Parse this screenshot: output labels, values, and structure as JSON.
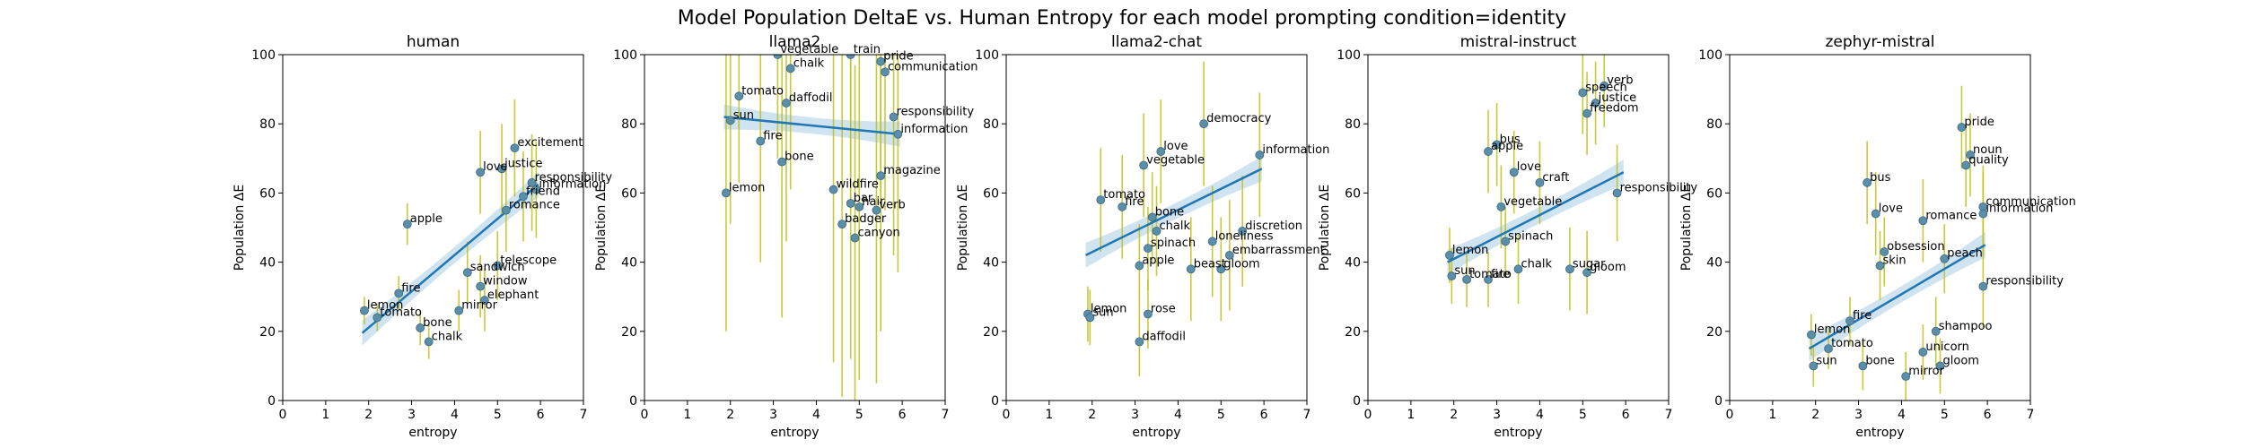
{
  "figure": {
    "title": "Model Population DeltaE vs. Human Entropy for each model prompting condition=identity"
  },
  "colors": {
    "point": "#5b8ea8",
    "point_edge": "#3a6a82",
    "regression": "#1f77b4",
    "ci_band": "#bcd7ea",
    "error_bar": "#bfbf1a"
  },
  "chart_data": [
    {
      "type": "scatter",
      "title": "human",
      "xlabel": "entropy",
      "ylabel": "Population ΔE",
      "xlim": [
        0,
        7
      ],
      "ylim": [
        0,
        100
      ],
      "xticks": [
        "0",
        "1",
        "2",
        "3",
        "4",
        "5",
        "6",
        "7"
      ],
      "yticks": [
        "0",
        "20",
        "40",
        "60",
        "80",
        "100"
      ],
      "regression": {
        "x": [
          1.85,
          5.95
        ],
        "y": [
          19.5,
          62.5
        ]
      },
      "points": [
        {
          "label": "lemon",
          "x": 1.9,
          "y": 26,
          "err": 4
        },
        {
          "label": "tomato",
          "x": 2.2,
          "y": 24,
          "err": 4
        },
        {
          "label": "apple",
          "x": 2.9,
          "y": 51,
          "err": 6
        },
        {
          "label": "fire",
          "x": 2.7,
          "y": 31,
          "err": 5
        },
        {
          "label": "bone",
          "x": 3.2,
          "y": 21,
          "err": 5
        },
        {
          "label": "chalk",
          "x": 3.4,
          "y": 17,
          "err": 5
        },
        {
          "label": "mirror",
          "x": 4.1,
          "y": 26,
          "err": 6
        },
        {
          "label": "window",
          "x": 4.6,
          "y": 33,
          "err": 9
        },
        {
          "label": "elephant",
          "x": 4.7,
          "y": 29,
          "err": 9
        },
        {
          "label": "telescope",
          "x": 5.0,
          "y": 39,
          "err": 10
        },
        {
          "label": "sandwich",
          "x": 4.3,
          "y": 37,
          "err": 9
        },
        {
          "label": "romance",
          "x": 5.2,
          "y": 55,
          "err": 12
        },
        {
          "label": "excitement",
          "x": 5.4,
          "y": 73,
          "err": 14
        },
        {
          "label": "responsibility",
          "x": 5.8,
          "y": 63,
          "err": 14
        },
        {
          "label": "information",
          "x": 5.9,
          "y": 61,
          "err": 14
        },
        {
          "label": "friend",
          "x": 5.6,
          "y": 59,
          "err": 13
        },
        {
          "label": "justice",
          "x": 5.1,
          "y": 67,
          "err": 13
        },
        {
          "label": "love",
          "x": 4.6,
          "y": 66,
          "err": 12
        }
      ]
    },
    {
      "type": "scatter",
      "title": "llama2",
      "xlabel": "entropy",
      "ylabel": "Population ΔE",
      "xlim": [
        0,
        7
      ],
      "ylim": [
        0,
        100
      ],
      "xticks": [
        "0",
        "1",
        "2",
        "3",
        "4",
        "5",
        "6",
        "7"
      ],
      "yticks": [
        "0",
        "20",
        "40",
        "60",
        "80",
        "100"
      ],
      "regression": {
        "x": [
          1.85,
          5.95
        ],
        "y": [
          82,
          77
        ]
      },
      "points": [
        {
          "label": "lemon",
          "x": 1.9,
          "y": 60,
          "err": 40
        },
        {
          "label": "sun",
          "x": 2.0,
          "y": 81,
          "err": 30
        },
        {
          "label": "tomato",
          "x": 2.2,
          "y": 88,
          "err": 25
        },
        {
          "label": "fire",
          "x": 2.7,
          "y": 75,
          "err": 35
        },
        {
          "label": "vegetable",
          "x": 3.1,
          "y": 100,
          "err": 30
        },
        {
          "label": "chalk",
          "x": 3.4,
          "y": 96,
          "err": 35
        },
        {
          "label": "bone",
          "x": 3.2,
          "y": 69,
          "err": 45
        },
        {
          "label": "daffodil",
          "x": 3.3,
          "y": 86,
          "err": 40
        },
        {
          "label": "train",
          "x": 4.8,
          "y": 100,
          "err": 45
        },
        {
          "label": "pride",
          "x": 5.5,
          "y": 98,
          "err": 40
        },
        {
          "label": "communication",
          "x": 5.6,
          "y": 95,
          "err": 40
        },
        {
          "label": "responsibility",
          "x": 5.8,
          "y": 82,
          "err": 40
        },
        {
          "label": "information",
          "x": 5.9,
          "y": 77,
          "err": 40
        },
        {
          "label": "magazine",
          "x": 5.5,
          "y": 65,
          "err": 45
        },
        {
          "label": "wildfire",
          "x": 4.4,
          "y": 61,
          "err": 50
        },
        {
          "label": "hair",
          "x": 5.0,
          "y": 56,
          "err": 50
        },
        {
          "label": "verb",
          "x": 5.4,
          "y": 55,
          "err": 50
        },
        {
          "label": "badger",
          "x": 4.6,
          "y": 51,
          "err": 50
        },
        {
          "label": "canyon",
          "x": 4.9,
          "y": 47,
          "err": 50
        },
        {
          "label": "bar",
          "x": 4.8,
          "y": 57,
          "err": 45
        }
      ]
    },
    {
      "type": "scatter",
      "title": "llama2-chat",
      "xlabel": "entropy",
      "ylabel": "Population ΔE",
      "xlim": [
        0,
        7
      ],
      "ylim": [
        0,
        100
      ],
      "xticks": [
        "0",
        "1",
        "2",
        "3",
        "4",
        "5",
        "6",
        "7"
      ],
      "yticks": [
        "0",
        "20",
        "40",
        "60",
        "80",
        "100"
      ],
      "regression": {
        "x": [
          1.85,
          5.95
        ],
        "y": [
          42,
          67
        ]
      },
      "points": [
        {
          "label": "lemon",
          "x": 1.9,
          "y": 25,
          "err": 8
        },
        {
          "label": "sun",
          "x": 1.95,
          "y": 24,
          "err": 8
        },
        {
          "label": "daffodil",
          "x": 3.1,
          "y": 17,
          "err": 10
        },
        {
          "label": "rose",
          "x": 3.3,
          "y": 25,
          "err": 10
        },
        {
          "label": "tomato",
          "x": 2.2,
          "y": 58,
          "err": 15
        },
        {
          "label": "fire",
          "x": 2.7,
          "y": 56,
          "err": 15
        },
        {
          "label": "apple",
          "x": 3.1,
          "y": 39,
          "err": 12
        },
        {
          "label": "spinach",
          "x": 3.3,
          "y": 44,
          "err": 12
        },
        {
          "label": "chalk",
          "x": 3.5,
          "y": 49,
          "err": 13
        },
        {
          "label": "bone",
          "x": 3.4,
          "y": 53,
          "err": 13
        },
        {
          "label": "love",
          "x": 3.6,
          "y": 72,
          "err": 15
        },
        {
          "label": "vegetable",
          "x": 3.2,
          "y": 68,
          "err": 15
        },
        {
          "label": "democracy",
          "x": 4.6,
          "y": 80,
          "err": 18
        },
        {
          "label": "information",
          "x": 5.9,
          "y": 71,
          "err": 18
        },
        {
          "label": "gloom",
          "x": 5.0,
          "y": 38,
          "err": 15
        },
        {
          "label": "beast",
          "x": 4.3,
          "y": 38,
          "err": 15
        },
        {
          "label": "embarrassment",
          "x": 5.2,
          "y": 42,
          "err": 16
        },
        {
          "label": "discretion",
          "x": 5.5,
          "y": 49,
          "err": 16
        },
        {
          "label": "loneliness",
          "x": 4.8,
          "y": 46,
          "err": 16
        }
      ]
    },
    {
      "type": "scatter",
      "title": "mistral-instruct",
      "xlabel": "entropy",
      "ylabel": "Population ΔE",
      "xlim": [
        0,
        7
      ],
      "ylim": [
        0,
        100
      ],
      "xticks": [
        "0",
        "1",
        "2",
        "3",
        "4",
        "5",
        "6",
        "7"
      ],
      "yticks": [
        "0",
        "20",
        "40",
        "60",
        "80",
        "100"
      ],
      "regression": {
        "x": [
          1.85,
          5.95
        ],
        "y": [
          40,
          66
        ]
      },
      "points": [
        {
          "label": "lemon",
          "x": 1.9,
          "y": 42,
          "err": 8
        },
        {
          "label": "sun",
          "x": 1.95,
          "y": 36,
          "err": 8
        },
        {
          "label": "tomato",
          "x": 2.3,
          "y": 35,
          "err": 8
        },
        {
          "label": "fire",
          "x": 2.8,
          "y": 35,
          "err": 8
        },
        {
          "label": "chalk",
          "x": 3.5,
          "y": 38,
          "err": 10
        },
        {
          "label": "spinach",
          "x": 3.2,
          "y": 46,
          "err": 10
        },
        {
          "label": "apple",
          "x": 2.8,
          "y": 72,
          "err": 12
        },
        {
          "label": "bus",
          "x": 3.0,
          "y": 74,
          "err": 12
        },
        {
          "label": "love",
          "x": 3.4,
          "y": 66,
          "err": 12
        },
        {
          "label": "vegetable",
          "x": 3.1,
          "y": 56,
          "err": 12
        },
        {
          "label": "verb",
          "x": 5.5,
          "y": 91,
          "err": 12
        },
        {
          "label": "speech",
          "x": 5.0,
          "y": 89,
          "err": 12
        },
        {
          "label": "justice",
          "x": 5.3,
          "y": 86,
          "err": 12
        },
        {
          "label": "freedom",
          "x": 5.1,
          "y": 83,
          "err": 12
        },
        {
          "label": "responsibility",
          "x": 5.8,
          "y": 60,
          "err": 14
        },
        {
          "label": "gloom",
          "x": 5.1,
          "y": 37,
          "err": 12
        },
        {
          "label": "sugar",
          "x": 4.7,
          "y": 38,
          "err": 12
        },
        {
          "label": "craft",
          "x": 4.0,
          "y": 63,
          "err": 12
        }
      ]
    },
    {
      "type": "scatter",
      "title": "zephyr-mistral",
      "xlabel": "entropy",
      "ylabel": "Population ΔE",
      "xlim": [
        0,
        7
      ],
      "ylim": [
        0,
        100
      ],
      "xticks": [
        "0",
        "1",
        "2",
        "3",
        "4",
        "5",
        "6",
        "7"
      ],
      "yticks": [
        "0",
        "20",
        "40",
        "60",
        "80",
        "100"
      ],
      "regression": {
        "x": [
          1.85,
          5.95
        ],
        "y": [
          15,
          45
        ]
      },
      "points": [
        {
          "label": "lemon",
          "x": 1.9,
          "y": 19,
          "err": 6
        },
        {
          "label": "sun",
          "x": 1.95,
          "y": 10,
          "err": 6
        },
        {
          "label": "tomato",
          "x": 2.3,
          "y": 15,
          "err": 6
        },
        {
          "label": "bone",
          "x": 3.1,
          "y": 10,
          "err": 7
        },
        {
          "label": "fire",
          "x": 2.8,
          "y": 23,
          "err": 7
        },
        {
          "label": "mirror",
          "x": 4.1,
          "y": 7,
          "err": 7
        },
        {
          "label": "unicorn",
          "x": 4.5,
          "y": 14,
          "err": 8
        },
        {
          "label": "gloom",
          "x": 4.9,
          "y": 10,
          "err": 8
        },
        {
          "label": "bus",
          "x": 3.2,
          "y": 63,
          "err": 12
        },
        {
          "label": "love",
          "x": 3.4,
          "y": 54,
          "err": 12
        },
        {
          "label": "pride",
          "x": 5.4,
          "y": 79,
          "err": 12
        },
        {
          "label": "noun",
          "x": 5.6,
          "y": 71,
          "err": 12
        },
        {
          "label": "quality",
          "x": 5.5,
          "y": 68,
          "err": 12
        },
        {
          "label": "obsession",
          "x": 3.6,
          "y": 43,
          "err": 10
        },
        {
          "label": "skin",
          "x": 3.5,
          "y": 39,
          "err": 10
        },
        {
          "label": "romance",
          "x": 4.5,
          "y": 52,
          "err": 12
        },
        {
          "label": "communication",
          "x": 5.9,
          "y": 56,
          "err": 12
        },
        {
          "label": "responsibility",
          "x": 5.9,
          "y": 33,
          "err": 12
        },
        {
          "label": "information",
          "x": 5.9,
          "y": 54,
          "err": 12
        },
        {
          "label": "shampoo",
          "x": 4.8,
          "y": 20,
          "err": 10
        },
        {
          "label": "peach",
          "x": 5.0,
          "y": 41,
          "err": 10
        }
      ]
    }
  ]
}
